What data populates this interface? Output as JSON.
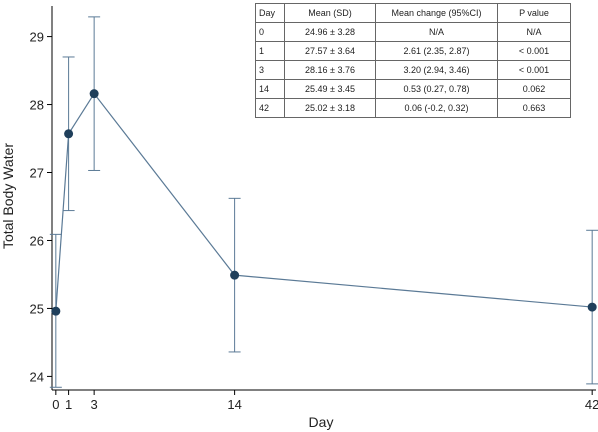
{
  "chart_data": {
    "type": "line",
    "xlabel": "Day",
    "ylabel": "Total Body Water",
    "x": [
      0,
      1,
      3,
      14,
      42
    ],
    "x_ticks": [
      "0",
      "1",
      "3",
      "14",
      "42"
    ],
    "y_ticks": [
      "24",
      "25",
      "26",
      "27",
      "28",
      "29"
    ],
    "xlim": [
      -0.3,
      42.3
    ],
    "ylim": [
      23.8,
      29.45
    ],
    "grid": false,
    "legend": "none",
    "series": [
      {
        "values": [
          24.96,
          27.57,
          28.16,
          25.49,
          25.02
        ],
        "error_low": [
          23.84,
          26.44,
          27.03,
          24.36,
          23.89
        ],
        "error_high": [
          26.09,
          28.7,
          29.29,
          26.62,
          26.15
        ],
        "color": "#5b7a96",
        "marker_color": "#1f3f5b"
      }
    ]
  },
  "table": {
    "headers": [
      "Day",
      "Mean (SD)",
      "Mean change (95%CI)",
      "P value"
    ],
    "rows": [
      [
        "0",
        "24.96 ± 3.28",
        "N/A",
        "N/A"
      ],
      [
        "1",
        "27.57 ± 3.64",
        "2.61 (2.35, 2.87)",
        "< 0.001"
      ],
      [
        "3",
        "28.16 ± 3.76",
        "3.20 (2.94, 3.46)",
        "< 0.001"
      ],
      [
        "14",
        "25.49 ± 3.45",
        "0.53 (0.27, 0.78)",
        "0.062"
      ],
      [
        "42",
        "25.02 ± 3.18",
        "0.06 (-0.2, 0.32)",
        "0.663"
      ]
    ]
  }
}
